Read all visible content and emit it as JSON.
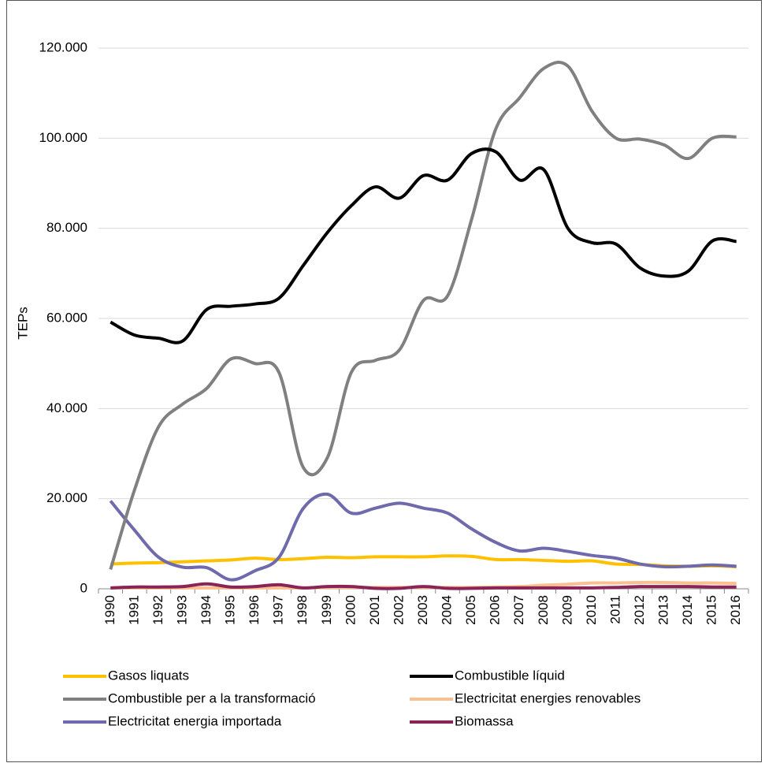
{
  "chart_data": {
    "type": "line",
    "y_label": "TEPs",
    "categories": [
      "1990",
      "1991",
      "1992",
      "1993",
      "1994",
      "1995",
      "1996",
      "1997",
      "1998",
      "1999",
      "2000",
      "2001",
      "2002",
      "2003",
      "2004",
      "2005",
      "2006",
      "2007",
      "2008",
      "2009",
      "2010",
      "2011",
      "2012",
      "2013",
      "2014",
      "2015",
      "2016"
    ],
    "series": [
      {
        "name": "Gasos liquats",
        "color": "#ffc000",
        "values": [
          5500,
          5700,
          5800,
          6000,
          6200,
          6400,
          6800,
          6500,
          6700,
          7000,
          6900,
          7100,
          7100,
          7100,
          7300,
          7200,
          6500,
          6500,
          6300,
          6100,
          6200,
          5500,
          5400,
          5100,
          5000,
          5100,
          4900
        ]
      },
      {
        "name": "Combustible líquid",
        "color": "#000000",
        "values": [
          59200,
          56300,
          55600,
          55000,
          62000,
          62700,
          63200,
          64500,
          71700,
          79000,
          85000,
          89200,
          86700,
          91700,
          90700,
          96600,
          97000,
          90700,
          93000,
          80000,
          76800,
          76500,
          71200,
          69400,
          70500,
          77200,
          77100
        ]
      },
      {
        "name": "Combustible per a la transformació",
        "color": "#808080",
        "values": [
          4300,
          22000,
          36000,
          41000,
          44500,
          51000,
          50000,
          48000,
          27000,
          29000,
          48000,
          50700,
          53000,
          64000,
          65000,
          82000,
          102000,
          109000,
          115500,
          116000,
          106000,
          100000,
          99800,
          98500,
          95500,
          100000,
          100300
        ]
      },
      {
        "name": "Electricitat energies renovables",
        "color": "#fac090",
        "values": [
          200,
          200,
          200,
          200,
          200,
          200,
          200,
          200,
          200,
          300,
          300,
          300,
          300,
          300,
          300,
          300,
          400,
          500,
          800,
          1000,
          1300,
          1300,
          1400,
          1400,
          1300,
          1300,
          1200
        ]
      },
      {
        "name": "Electricitat energia importada",
        "color": "#6f6aab",
        "values": [
          19500,
          13000,
          7000,
          4800,
          4700,
          2000,
          4000,
          7000,
          17800,
          21000,
          16800,
          17900,
          19000,
          17900,
          16800,
          13300,
          10300,
          8400,
          9000,
          8300,
          7400,
          6800,
          5500,
          4900,
          5000,
          5300,
          5000
        ]
      },
      {
        "name": "Biomassa",
        "color": "#8b2456",
        "values": [
          200,
          400,
          400,
          500,
          1100,
          400,
          500,
          900,
          200,
          500,
          500,
          100,
          100,
          500,
          100,
          100,
          200,
          200,
          200,
          200,
          200,
          300,
          500,
          500,
          500,
          400,
          400
        ]
      }
    ],
    "ylim": [
      0,
      120000
    ],
    "yticks": [
      0,
      {
        "value": 20000,
        "label": "20.000"
      },
      {
        "value": 40000,
        "label": "40.000"
      },
      {
        "value": 60000,
        "label": "60.000"
      },
      {
        "value": 80000,
        "label": "80.000"
      },
      {
        "value": 100000,
        "label": "100.000"
      },
      {
        "value": 120000,
        "label": "120.000"
      }
    ],
    "grid": true,
    "legend": "bottom"
  }
}
